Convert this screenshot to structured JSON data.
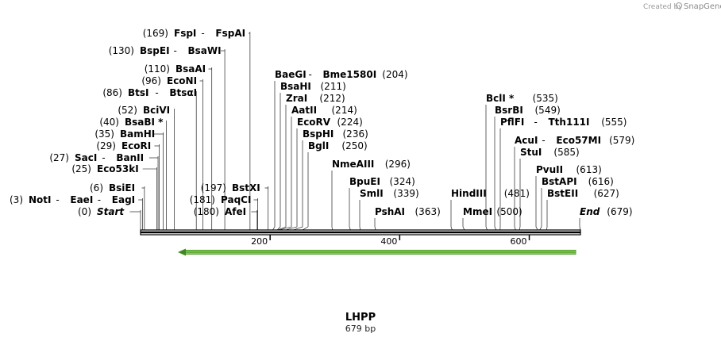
{
  "credit": {
    "prefix": "Created by",
    "brand": "SnapGene"
  },
  "sequence": {
    "name": "LHPP",
    "length_label": "679 bp",
    "length": 679
  },
  "axis": {
    "ticks": [
      200,
      400,
      600
    ]
  },
  "feature": {
    "start": 60,
    "end": 672,
    "direction": "reverse",
    "color": "#6fbf3a"
  },
  "sites": [
    {
      "pos": "(169)",
      "names": [
        "FspI",
        "FspAI"
      ],
      "bp": 169
    },
    {
      "pos": "(130)",
      "names": [
        "BspEI",
        "BsaWI"
      ],
      "bp": 130
    },
    {
      "pos": "(110)",
      "names": [
        "BsaAI"
      ],
      "bp": 110
    },
    {
      "pos": "(96)",
      "names": [
        "EcoNI"
      ],
      "bp": 96
    },
    {
      "pos": "(86)",
      "names": [
        "BtsI",
        "BtsαI"
      ],
      "bp": 86
    },
    {
      "pos": "(52)",
      "names": [
        "BciVI"
      ],
      "bp": 52
    },
    {
      "pos": "(40)",
      "names": [
        "BsaBI *"
      ],
      "bp": 40
    },
    {
      "pos": "(35)",
      "names": [
        "BamHI"
      ],
      "bp": 35
    },
    {
      "pos": "(29)",
      "names": [
        "EcoRI"
      ],
      "bp": 29
    },
    {
      "pos": "(27)",
      "names": [
        "SacI",
        "BanII"
      ],
      "bp": 27
    },
    {
      "pos": "(25)",
      "names": [
        "Eco53kI"
      ],
      "bp": 25
    },
    {
      "pos": "(6)",
      "names": [
        "BsiEI"
      ],
      "bp": 6
    },
    {
      "pos": "(3)",
      "names": [
        "NotI",
        "EaeI",
        "EagI"
      ],
      "bp": 3
    },
    {
      "pos": "(0)",
      "names": [
        "Start"
      ],
      "bp": 0,
      "italic": true
    },
    {
      "pos": "(197)",
      "names": [
        "BstXI"
      ],
      "bp": 197
    },
    {
      "pos": "(181)",
      "names": [
        "PaqCI"
      ],
      "bp": 181
    },
    {
      "pos": "(180)",
      "names": [
        "AfeI"
      ],
      "bp": 180
    },
    {
      "pos": "(204)",
      "names": [
        "BaeGI",
        "Bme1580I"
      ],
      "bp": 204
    },
    {
      "pos": "(211)",
      "names": [
        "BsaHI"
      ],
      "bp": 211
    },
    {
      "pos": "(212)",
      "names": [
        "ZraI"
      ],
      "bp": 212
    },
    {
      "pos": "(214)",
      "names": [
        "AatII"
      ],
      "bp": 214
    },
    {
      "pos": "(224)",
      "names": [
        "EcoRV"
      ],
      "bp": 224
    },
    {
      "pos": "(236)",
      "names": [
        "BspHI"
      ],
      "bp": 236
    },
    {
      "pos": "(250)",
      "names": [
        "BglI"
      ],
      "bp": 250
    },
    {
      "pos": "(296)",
      "names": [
        "NmeAIII"
      ],
      "bp": 296
    },
    {
      "pos": "(324)",
      "names": [
        "BpuEI"
      ],
      "bp": 324
    },
    {
      "pos": "(339)",
      "names": [
        "SmlI"
      ],
      "bp": 339
    },
    {
      "pos": "(363)",
      "names": [
        "PshAI"
      ],
      "bp": 363
    },
    {
      "pos": "(481)",
      "names": [
        "HindIII"
      ],
      "bp": 481
    },
    {
      "pos": "(500)",
      "names": [
        "MmeI"
      ],
      "bp": 500
    },
    {
      "pos": "(535)",
      "names": [
        "BclI *"
      ],
      "bp": 535
    },
    {
      "pos": "(549)",
      "names": [
        "BsrBI"
      ],
      "bp": 549
    },
    {
      "pos": "(555)",
      "names": [
        "PflFI",
        "Tth111I"
      ],
      "bp": 555
    },
    {
      "pos": "(579)",
      "names": [
        "AcuI",
        "Eco57MI"
      ],
      "bp": 579
    },
    {
      "pos": "(585)",
      "names": [
        "StuI"
      ],
      "bp": 585
    },
    {
      "pos": "(613)",
      "names": [
        "PvuII"
      ],
      "bp": 613
    },
    {
      "pos": "(616)",
      "names": [
        "BstAPI"
      ],
      "bp": 616
    },
    {
      "pos": "(627)",
      "names": [
        "BstEII"
      ],
      "bp": 627
    },
    {
      "pos": "(679)",
      "names": [
        "End"
      ],
      "bp": 679,
      "italic": true
    }
  ]
}
